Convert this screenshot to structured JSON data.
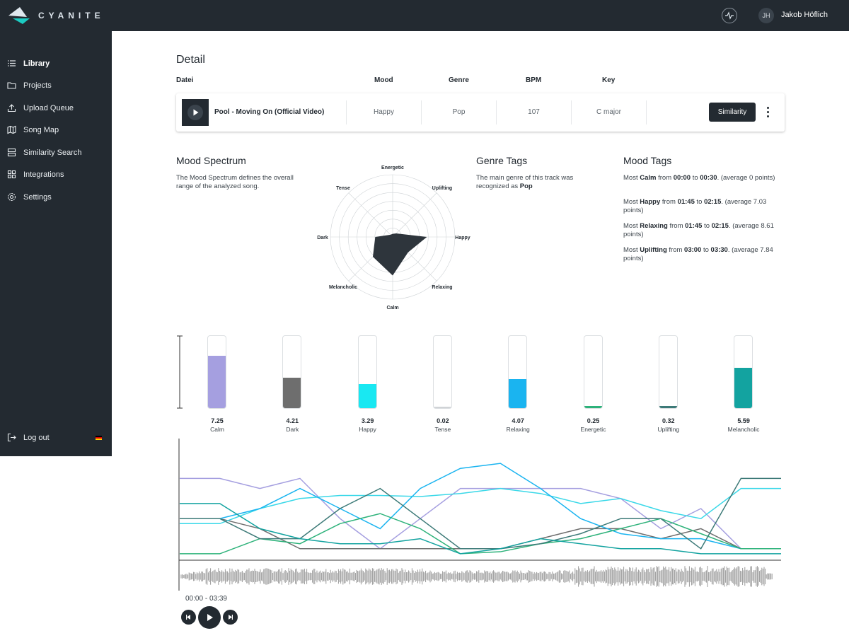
{
  "brand": {
    "name": "CYANITE"
  },
  "user": {
    "initials": "JH",
    "name": "Jakob Höflich"
  },
  "sidebar": {
    "items": [
      {
        "label": "Library",
        "icon": "list-icon",
        "active": true
      },
      {
        "label": "Projects",
        "icon": "folder-icon",
        "active": false
      },
      {
        "label": "Upload Queue",
        "icon": "upload-icon",
        "active": false
      },
      {
        "label": "Song Map",
        "icon": "map-icon",
        "active": false
      },
      {
        "label": "Similarity Search",
        "icon": "server-icon",
        "active": false
      },
      {
        "label": "Integrations",
        "icon": "grid-icon",
        "active": false
      },
      {
        "label": "Settings",
        "icon": "gear-icon",
        "active": false
      }
    ],
    "logout_label": "Log out"
  },
  "detail": {
    "title": "Detail",
    "columns": {
      "file": "Datei",
      "mood": "Mood",
      "genre": "Genre",
      "bpm": "BPM",
      "key": "Key"
    },
    "track": {
      "title": "Pool - Moving On (Official Video)",
      "mood": "Happy",
      "genre": "Pop",
      "bpm": "107",
      "key": "C major"
    },
    "similarity_label": "Similarity"
  },
  "mood_spectrum": {
    "title": "Mood Spectrum",
    "description": "The Mood Spectrum defines the overall range of the analyzed song.",
    "axes": [
      "Energetic",
      "Uplifting",
      "Happy",
      "Relaxing",
      "Calm",
      "Melancholic",
      "Dark",
      "Tense"
    ],
    "values": [
      0.05,
      0.08,
      0.55,
      0.35,
      0.62,
      0.45,
      0.28,
      0.05
    ]
  },
  "genre_tags": {
    "title": "Genre Tags",
    "text_prefix": "The main genre of this track was recognized as",
    "genre": "Pop"
  },
  "mood_tags": {
    "title": "Mood Tags",
    "entries": [
      {
        "mood": "Calm",
        "from": "00:00",
        "to": "00:30",
        "average": "(average 0 points)"
      },
      {
        "mood": "Happy",
        "from": "01:45",
        "to": "02:15",
        "average": "(average 7.03 points)"
      },
      {
        "mood": "Relaxing",
        "from": "01:45",
        "to": "02:15",
        "average": "(average 8.61 points)"
      },
      {
        "mood": "Uplifting",
        "from": "03:00",
        "to": "03:30",
        "average": "(average 7.84 points)"
      }
    ],
    "word_most": "Most",
    "word_from": "from",
    "word_to": "to"
  },
  "mood_bars": [
    {
      "label": "Calm",
      "value": "7.25",
      "fraction": 0.725,
      "color": "#a59fe0"
    },
    {
      "label": "Dark",
      "value": "4.21",
      "fraction": 0.421,
      "color": "#6e6e6e"
    },
    {
      "label": "Happy",
      "value": "3.29",
      "fraction": 0.329,
      "color": "#19e8f2"
    },
    {
      "label": "Tense",
      "value": "0.02",
      "fraction": 0.002,
      "color": "#d0d3d6"
    },
    {
      "label": "Relaxing",
      "value": "4.07",
      "fraction": 0.407,
      "color": "#1ab4f0"
    },
    {
      "label": "Energetic",
      "value": "0.25",
      "fraction": 0.025,
      "color": "#2db27a"
    },
    {
      "label": "Uplifting",
      "value": "0.32",
      "fraction": 0.032,
      "color": "#3d7a78"
    },
    {
      "label": "Melancholic",
      "value": "5.59",
      "fraction": 0.559,
      "color": "#13a3a0"
    }
  ],
  "timeline": {
    "series": [
      {
        "key": "calm",
        "color": "#a59fe0",
        "values": [
          0.2,
          0.2,
          0.3,
          0.2,
          0.6,
          0.9,
          0.6,
          0.3,
          0.3,
          0.3,
          0.3,
          0.4,
          0.7,
          0.5,
          0.9,
          0.9
        ]
      },
      {
        "key": "dark",
        "color": "#6e6e6e",
        "values": [
          0.6,
          0.6,
          0.7,
          0.9,
          0.9,
          0.9,
          0.9,
          0.9,
          0.9,
          0.8,
          0.7,
          0.7,
          0.8,
          0.7,
          0.9,
          0.9
        ]
      },
      {
        "key": "happy",
        "color": "#3ad8e8",
        "values": [
          0.65,
          0.65,
          0.5,
          0.4,
          0.37,
          0.37,
          0.38,
          0.35,
          0.3,
          0.35,
          0.45,
          0.4,
          0.52,
          0.6,
          0.3,
          0.3
        ]
      },
      {
        "key": "relaxing",
        "color": "#1ab4f0",
        "values": [
          0.6,
          0.6,
          0.5,
          0.3,
          0.5,
          0.7,
          0.3,
          0.1,
          0.05,
          0.3,
          0.6,
          0.75,
          0.8,
          0.8,
          0.9,
          0.9
        ]
      },
      {
        "key": "energetic",
        "color": "#2db27a",
        "values": [
          0.95,
          0.95,
          0.8,
          0.85,
          0.65,
          0.55,
          0.7,
          0.95,
          0.93,
          0.85,
          0.8,
          0.7,
          0.6,
          0.75,
          0.9,
          0.9
        ]
      },
      {
        "key": "uplifting",
        "color": "#3d7a78",
        "values": [
          0.6,
          0.6,
          0.8,
          0.8,
          0.5,
          0.3,
          0.6,
          0.9,
          0.9,
          0.85,
          0.75,
          0.6,
          0.6,
          0.9,
          0.2,
          0.2
        ]
      },
      {
        "key": "melancholic",
        "color": "#13a3a0",
        "values": [
          0.45,
          0.45,
          0.7,
          0.8,
          0.85,
          0.85,
          0.8,
          0.95,
          0.9,
          0.8,
          0.85,
          0.9,
          0.9,
          0.95,
          0.95,
          0.95
        ]
      }
    ]
  },
  "player": {
    "current": "00:00",
    "separator": "-",
    "duration": "03:39"
  }
}
